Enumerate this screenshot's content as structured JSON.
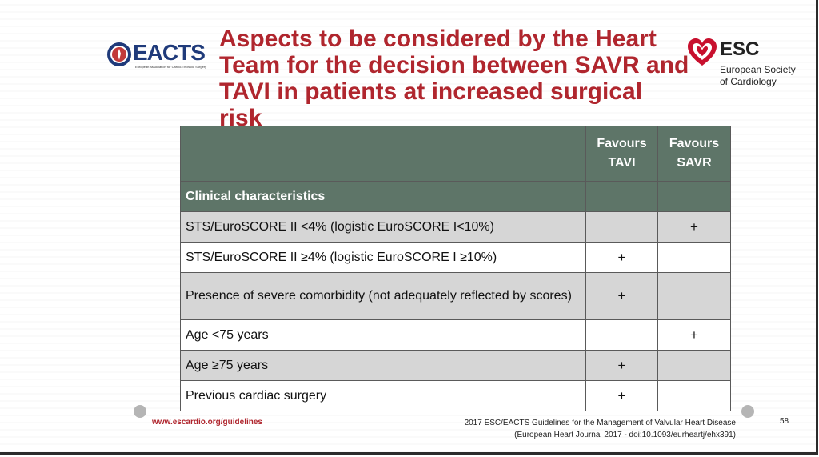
{
  "header": {
    "title_lines": [
      "Aspects to be considered by the Heart",
      "Team for the decision between SAVR and",
      "TAVI in patients at increased surgical risk"
    ],
    "eacts": {
      "word": "EACTS",
      "subtitle": "European Association for Cardio-Thoracic Surgery"
    },
    "esc": {
      "word": "ESC",
      "line1": "European Society",
      "line2": "of Cardiology"
    }
  },
  "table": {
    "columns": [
      "",
      "Favours TAVI",
      "Favours SAVR"
    ],
    "column_lines": {
      "tavi": [
        "Favours",
        "TAVI"
      ],
      "savr": [
        "Favours",
        "SAVR"
      ]
    },
    "section": "Clinical characteristics",
    "rows": [
      {
        "label": "STS/EuroSCORE II <4% (logistic EuroSCORE I<10%)",
        "tavi": "",
        "savr": "+"
      },
      {
        "label": "STS/EuroSCORE II ≥4% (logistic EuroSCORE I ≥10%)",
        "tavi": "+",
        "savr": ""
      },
      {
        "label": "Presence of severe comorbidity (not adequately reflected by scores)",
        "tavi": "+",
        "savr": ""
      },
      {
        "label": "Age <75 years",
        "tavi": "",
        "savr": "+"
      },
      {
        "label": "Age ≥75 years",
        "tavi": "+",
        "savr": ""
      },
      {
        "label": "Previous cardiac surgery",
        "tavi": "+",
        "savr": ""
      }
    ]
  },
  "footer": {
    "url": "www.escardio.org/guidelines",
    "citation_line1": "2017 ESC/EACTS Guidelines for the Management of Valvular Heart Disease",
    "citation_line2": "(European Heart Journal 2017 - doi:10.1093/eurheartj/ehx391)",
    "page_number": "58"
  },
  "colors": {
    "title_red": "#b0262e",
    "table_header_green": "#5e7568",
    "row_shade_gray": "#d6d6d6",
    "eacts_blue": "#1f3a7a"
  }
}
